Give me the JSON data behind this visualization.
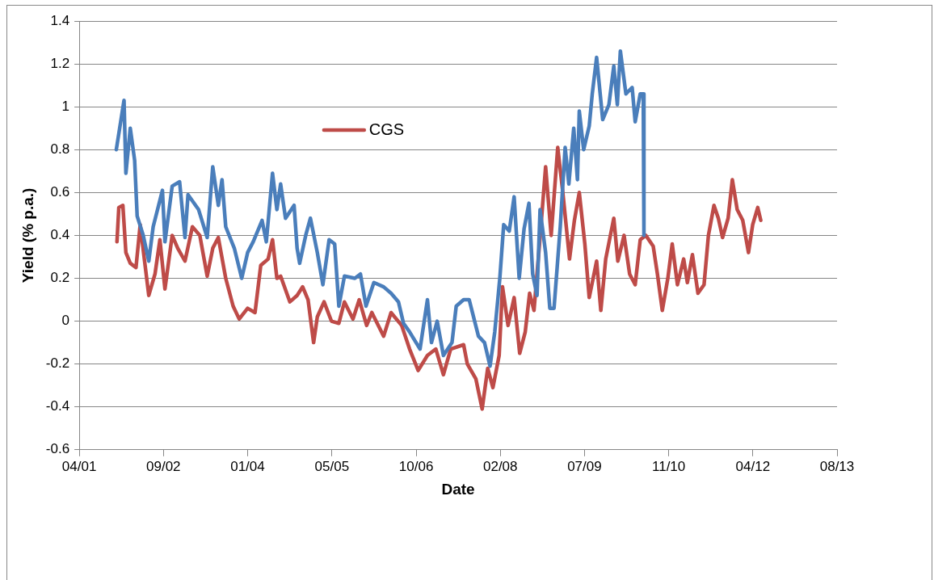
{
  "chart_data": {
    "type": "line",
    "xlabel": "Date",
    "ylabel": "Yield (% p.a.)",
    "xlim": [
      "2001-04-20",
      "2013-08-16"
    ],
    "xticks": [
      {
        "value": "2001-04-20",
        "label": "04/01"
      },
      {
        "value": "2002-09-02",
        "label": "09/02"
      },
      {
        "value": "2004-01-15",
        "label": "01/04"
      },
      {
        "value": "2005-05-30",
        "label": "05/05"
      },
      {
        "value": "2006-10-12",
        "label": "10/06"
      },
      {
        "value": "2008-02-24",
        "label": "02/08"
      },
      {
        "value": "2009-07-08",
        "label": "07/09"
      },
      {
        "value": "2010-11-20",
        "label": "11/10"
      },
      {
        "value": "2012-04-03",
        "label": "04/12"
      },
      {
        "value": "2013-08-16",
        "label": "08/13"
      }
    ],
    "ylim": [
      -0.6,
      1.4
    ],
    "yticks": [
      -0.6,
      -0.4,
      -0.2,
      0,
      0.2,
      0.4,
      0.6,
      0.8,
      1,
      1.2,
      1.4
    ],
    "grid": "y",
    "legend": "top",
    "marker": "none",
    "line_style": "solid",
    "series": [
      {
        "color": "#4a7ebb",
        "x": [
          "2001-11-26",
          "2001-12-18",
          "2002-01-11",
          "2002-01-22",
          "2002-02-17",
          "2002-03-15",
          "2002-03-30",
          "2002-05-05",
          "2002-06-07",
          "2002-07-03",
          "2002-08-27",
          "2002-09-11",
          "2002-10-24",
          "2002-12-07",
          "2003-01-08",
          "2003-01-26",
          "2003-03-30",
          "2003-05-20",
          "2003-06-22",
          "2003-07-25",
          "2003-08-16",
          "2003-09-07",
          "2003-10-28",
          "2003-12-11",
          "2004-01-15",
          "2004-02-17",
          "2004-04-10",
          "2004-05-05",
          "2004-06-11",
          "2004-07-07",
          "2004-07-29",
          "2004-08-27",
          "2004-10-17",
          "2004-11-04",
          "2004-11-19",
          "2004-12-25",
          "2005-01-22",
          "2005-03-04",
          "2005-04-06",
          "2005-05-13",
          "2005-06-15",
          "2005-07-10",
          "2005-08-12",
          "2005-10-13",
          "2005-11-15",
          "2005-12-18",
          "2006-02-03",
          "2006-04-02",
          "2006-05-16",
          "2006-06-29",
          "2006-07-29",
          "2006-09-03",
          "2006-11-04",
          "2006-12-18",
          "2007-01-11",
          "2007-02-14",
          "2007-03-23",
          "2007-05-13",
          "2007-06-07",
          "2007-07-21",
          "2007-08-23",
          "2007-10-17",
          "2007-11-22",
          "2007-12-25",
          "2008-01-22",
          "2008-02-21",
          "2008-03-15",
          "2008-04-17",
          "2008-05-16",
          "2008-06-15",
          "2008-07-14",
          "2008-08-12",
          "2008-09-03",
          "2008-09-29",
          "2008-10-17",
          "2008-11-19",
          "2008-12-14",
          "2009-01-08",
          "2009-02-14",
          "2009-03-15",
          "2009-04-06",
          "2009-05-05",
          "2009-05-27",
          "2009-06-07",
          "2009-07-03",
          "2009-08-05",
          "2009-08-23",
          "2009-09-18",
          "2009-10-24",
          "2009-11-30",
          "2009-12-29",
          "2010-01-19",
          "2010-02-06",
          "2010-03-11",
          "2010-04-17",
          "2010-05-05",
          "2010-06-04",
          "2010-06-22",
          "2010-06-26"
        ],
        "values": [
          0.8,
          0.91,
          1.03,
          0.69,
          0.9,
          0.75,
          0.49,
          0.4,
          0.28,
          0.44,
          0.61,
          0.37,
          0.63,
          0.65,
          0.39,
          0.59,
          0.52,
          0.39,
          0.72,
          0.54,
          0.66,
          0.44,
          0.34,
          0.2,
          0.32,
          0.37,
          0.47,
          0.37,
          0.69,
          0.52,
          0.64,
          0.48,
          0.54,
          0.34,
          0.27,
          0.4,
          0.48,
          0.32,
          0.17,
          0.38,
          0.36,
          0.07,
          0.21,
          0.2,
          0.22,
          0.07,
          0.18,
          0.16,
          0.13,
          0.09,
          -0.01,
          -0.05,
          -0.13,
          0.1,
          -0.1,
          0,
          -0.16,
          -0.1,
          0.07,
          0.1,
          0.1,
          -0.07,
          -0.1,
          -0.21,
          -0.05,
          0.2,
          0.45,
          0.42,
          0.58,
          0.2,
          0.43,
          0.55,
          0.22,
          0.12,
          0.52,
          0.32,
          0.06,
          0.06,
          0.44,
          0.81,
          0.64,
          0.9,
          0.66,
          0.98,
          0.8,
          0.91,
          1.06,
          1.23,
          0.94,
          1.01,
          1.19,
          1.01,
          1.26,
          1.06,
          1.09,
          0.93,
          1.06,
          1.06,
          0.4
        ]
      },
      {
        "name": "CGS",
        "color": "#be4b48",
        "x": [
          "2001-11-30",
          "2001-12-11",
          "2002-01-04",
          "2002-01-22",
          "2002-02-17",
          "2002-03-23",
          "2002-04-17",
          "2002-05-13",
          "2002-06-07",
          "2002-07-14",
          "2002-08-12",
          "2002-09-11",
          "2002-10-24",
          "2002-11-26",
          "2003-01-08",
          "2003-02-21",
          "2003-04-06",
          "2003-05-20",
          "2003-06-22",
          "2003-07-25",
          "2003-09-07",
          "2003-10-21",
          "2003-11-26",
          "2004-01-15",
          "2004-02-28",
          "2004-04-02",
          "2004-05-16",
          "2004-06-11",
          "2004-07-07",
          "2004-07-29",
          "2004-09-22",
          "2004-11-04",
          "2004-12-07",
          "2005-01-08",
          "2005-02-10",
          "2005-03-04",
          "2005-04-13",
          "2005-05-27",
          "2005-07-10",
          "2005-08-12",
          "2005-10-02",
          "2005-11-08",
          "2005-12-22",
          "2006-01-22",
          "2006-04-02",
          "2006-05-16",
          "2006-07-18",
          "2006-09-03",
          "2006-10-24",
          "2006-12-18",
          "2007-02-06",
          "2007-03-23",
          "2007-05-05",
          "2007-07-21",
          "2007-08-12",
          "2007-10-02",
          "2007-11-08",
          "2007-12-11",
          "2008-01-11",
          "2008-02-17",
          "2008-03-08",
          "2008-04-10",
          "2008-05-16",
          "2008-06-18",
          "2008-07-21",
          "2008-08-16",
          "2008-09-11",
          "2008-10-17",
          "2008-11-19",
          "2008-12-22",
          "2009-01-30",
          "2009-02-28",
          "2009-04-10",
          "2009-05-09",
          "2009-06-07",
          "2009-07-10",
          "2009-08-05",
          "2009-09-18",
          "2009-10-13",
          "2009-11-11",
          "2009-12-29",
          "2010-01-22",
          "2010-02-28",
          "2010-04-02",
          "2010-05-05",
          "2010-06-04",
          "2010-07-07",
          "2010-08-20",
          "2010-09-14",
          "2010-10-13",
          "2010-11-15",
          "2010-12-11",
          "2011-01-11",
          "2011-02-17",
          "2011-03-11",
          "2011-04-10",
          "2011-05-13",
          "2011-06-18",
          "2011-07-14",
          "2011-08-16",
          "2011-09-11",
          "2011-10-06",
          "2011-11-08",
          "2011-12-03",
          "2012-01-01",
          "2012-02-03",
          "2012-03-08",
          "2012-04-02",
          "2012-05-02",
          "2012-05-20"
        ],
        "values": [
          0.37,
          0.53,
          0.54,
          0.32,
          0.27,
          0.25,
          0.45,
          0.28,
          0.12,
          0.22,
          0.38,
          0.15,
          0.4,
          0.34,
          0.28,
          0.44,
          0.4,
          0.21,
          0.34,
          0.39,
          0.2,
          0.07,
          0.01,
          0.06,
          0.04,
          0.26,
          0.29,
          0.38,
          0.2,
          0.21,
          0.09,
          0.12,
          0.16,
          0.1,
          -0.1,
          0.02,
          0.09,
          0,
          -0.01,
          0.09,
          0.01,
          0.1,
          -0.02,
          0.04,
          -0.07,
          0.04,
          -0.02,
          -0.13,
          -0.23,
          -0.16,
          -0.13,
          -0.25,
          -0.13,
          -0.11,
          -0.2,
          -0.27,
          -0.41,
          -0.22,
          -0.31,
          -0.16,
          0.16,
          -0.02,
          0.11,
          -0.15,
          -0.05,
          0.13,
          0.05,
          0.39,
          0.72,
          0.4,
          0.81,
          0.61,
          0.29,
          0.47,
          0.6,
          0.36,
          0.11,
          0.28,
          0.05,
          0.29,
          0.48,
          0.28,
          0.4,
          0.22,
          0.17,
          0.38,
          0.4,
          0.35,
          0.22,
          0.05,
          0.2,
          0.36,
          0.17,
          0.29,
          0.18,
          0.31,
          0.13,
          0.17,
          0.4,
          0.54,
          0.48,
          0.39,
          0.48,
          0.66,
          0.52,
          0.47,
          0.32,
          0.45,
          0.53,
          0.47
        ]
      }
    ]
  }
}
